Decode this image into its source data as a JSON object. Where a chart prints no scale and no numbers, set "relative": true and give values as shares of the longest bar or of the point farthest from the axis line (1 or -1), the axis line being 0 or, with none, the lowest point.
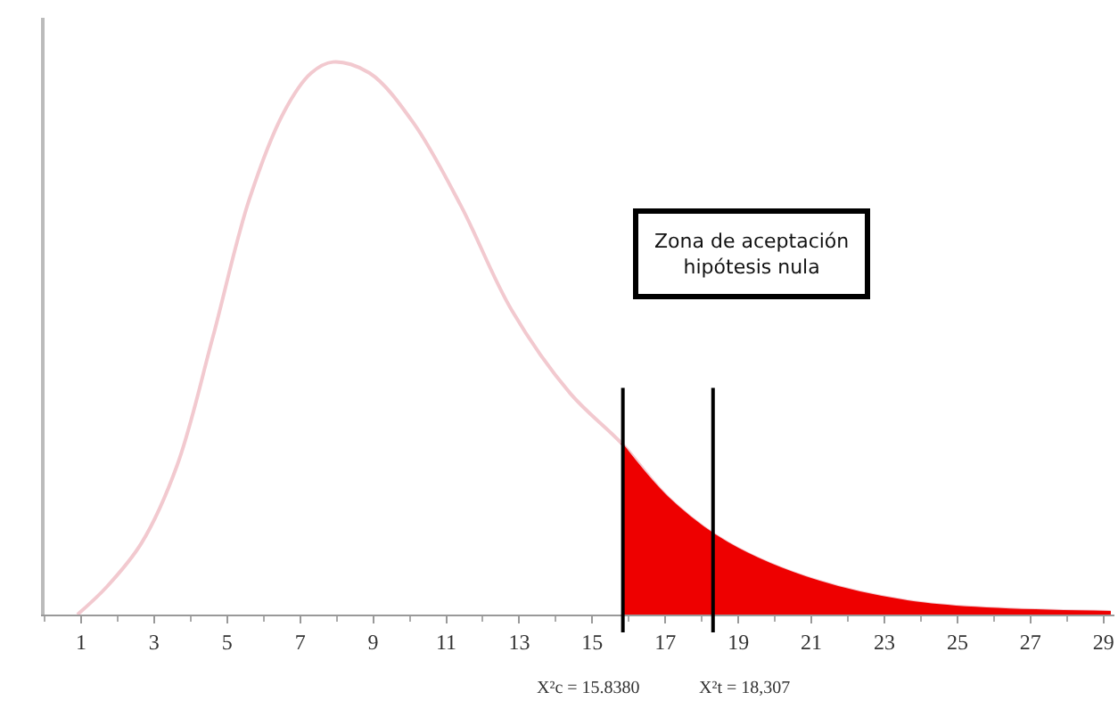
{
  "chart_data": {
    "type": "line",
    "relative": true,
    "series": [
      {
        "color": "#f2c9cf",
        "x": [
          0.9,
          1.7,
          2.66,
          3.63,
          4.6,
          5.6,
          6.56,
          7.3,
          7.9,
          8.9,
          10.1,
          11.4,
          12.8,
          14.4,
          15.8,
          17.1,
          18.7,
          21.2,
          24.1,
          29.2
        ],
        "values": [
          0,
          0.05,
          0.13,
          0.27,
          0.5,
          0.75,
          0.91,
          0.98,
          1,
          0.98,
          0.89,
          0.74,
          0.55,
          0.4,
          0.31,
          0.21,
          0.13,
          0.06,
          0.02,
          0.005
        ]
      },
      {
        "type": "area",
        "color": "#ee0000",
        "x": [
          15.8,
          17.1,
          18.7,
          21.2,
          24.1,
          29.2
        ],
        "values": [
          0.31,
          0.21,
          0.13,
          0.06,
          0.02,
          0.005
        ]
      }
    ],
    "xlim": [
      0,
      29.3
    ],
    "xticks": [
      1,
      3,
      5,
      7,
      9,
      11,
      13,
      15,
      17,
      19,
      21,
      23,
      25,
      27,
      29
    ],
    "ref_lines": [
      {
        "axis": "x",
        "value": 15.838,
        "label": "X²c = 15.8380",
        "color": "#000000"
      },
      {
        "axis": "x",
        "value": 18.307,
        "label": "X²t = 18,307",
        "color": "#000000"
      }
    ],
    "annotations": [
      "Zona de aceptación\nhipótesis nula"
    ],
    "grid": false,
    "marker": "none",
    "line_style": "solid"
  }
}
